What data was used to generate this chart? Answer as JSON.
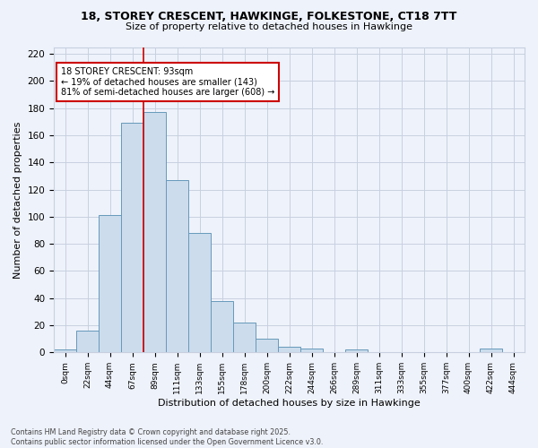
{
  "title1": "18, STOREY CRESCENT, HAWKINGE, FOLKESTONE, CT18 7TT",
  "title2": "Size of property relative to detached houses in Hawkinge",
  "xlabel": "Distribution of detached houses by size in Hawkinge",
  "ylabel": "Number of detached properties",
  "bar_labels": [
    "0sqm",
    "22sqm",
    "44sqm",
    "67sqm",
    "89sqm",
    "111sqm",
    "133sqm",
    "155sqm",
    "178sqm",
    "200sqm",
    "222sqm",
    "244sqm",
    "266sqm",
    "289sqm",
    "311sqm",
    "333sqm",
    "355sqm",
    "377sqm",
    "400sqm",
    "422sqm",
    "444sqm"
  ],
  "bar_values": [
    2,
    16,
    101,
    169,
    177,
    127,
    88,
    38,
    22,
    10,
    4,
    3,
    0,
    2,
    0,
    0,
    0,
    0,
    0,
    3,
    0
  ],
  "bar_color": "#ccdcec",
  "bar_edge_color": "#6699bb",
  "vline_x_bar": 4,
  "vline_color": "#cc0000",
  "annotation_text": "18 STOREY CRESCENT: 93sqm\n← 19% of detached houses are smaller (143)\n81% of semi-detached houses are larger (608) →",
  "background_color": "#eef2fa",
  "grid_color": "#c8d0e0",
  "footer": "Contains HM Land Registry data © Crown copyright and database right 2025.\nContains public sector information licensed under the Open Government Licence v3.0.",
  "ylim": [
    0,
    225
  ],
  "yticks": [
    0,
    20,
    40,
    60,
    80,
    100,
    120,
    140,
    160,
    180,
    200,
    220
  ]
}
